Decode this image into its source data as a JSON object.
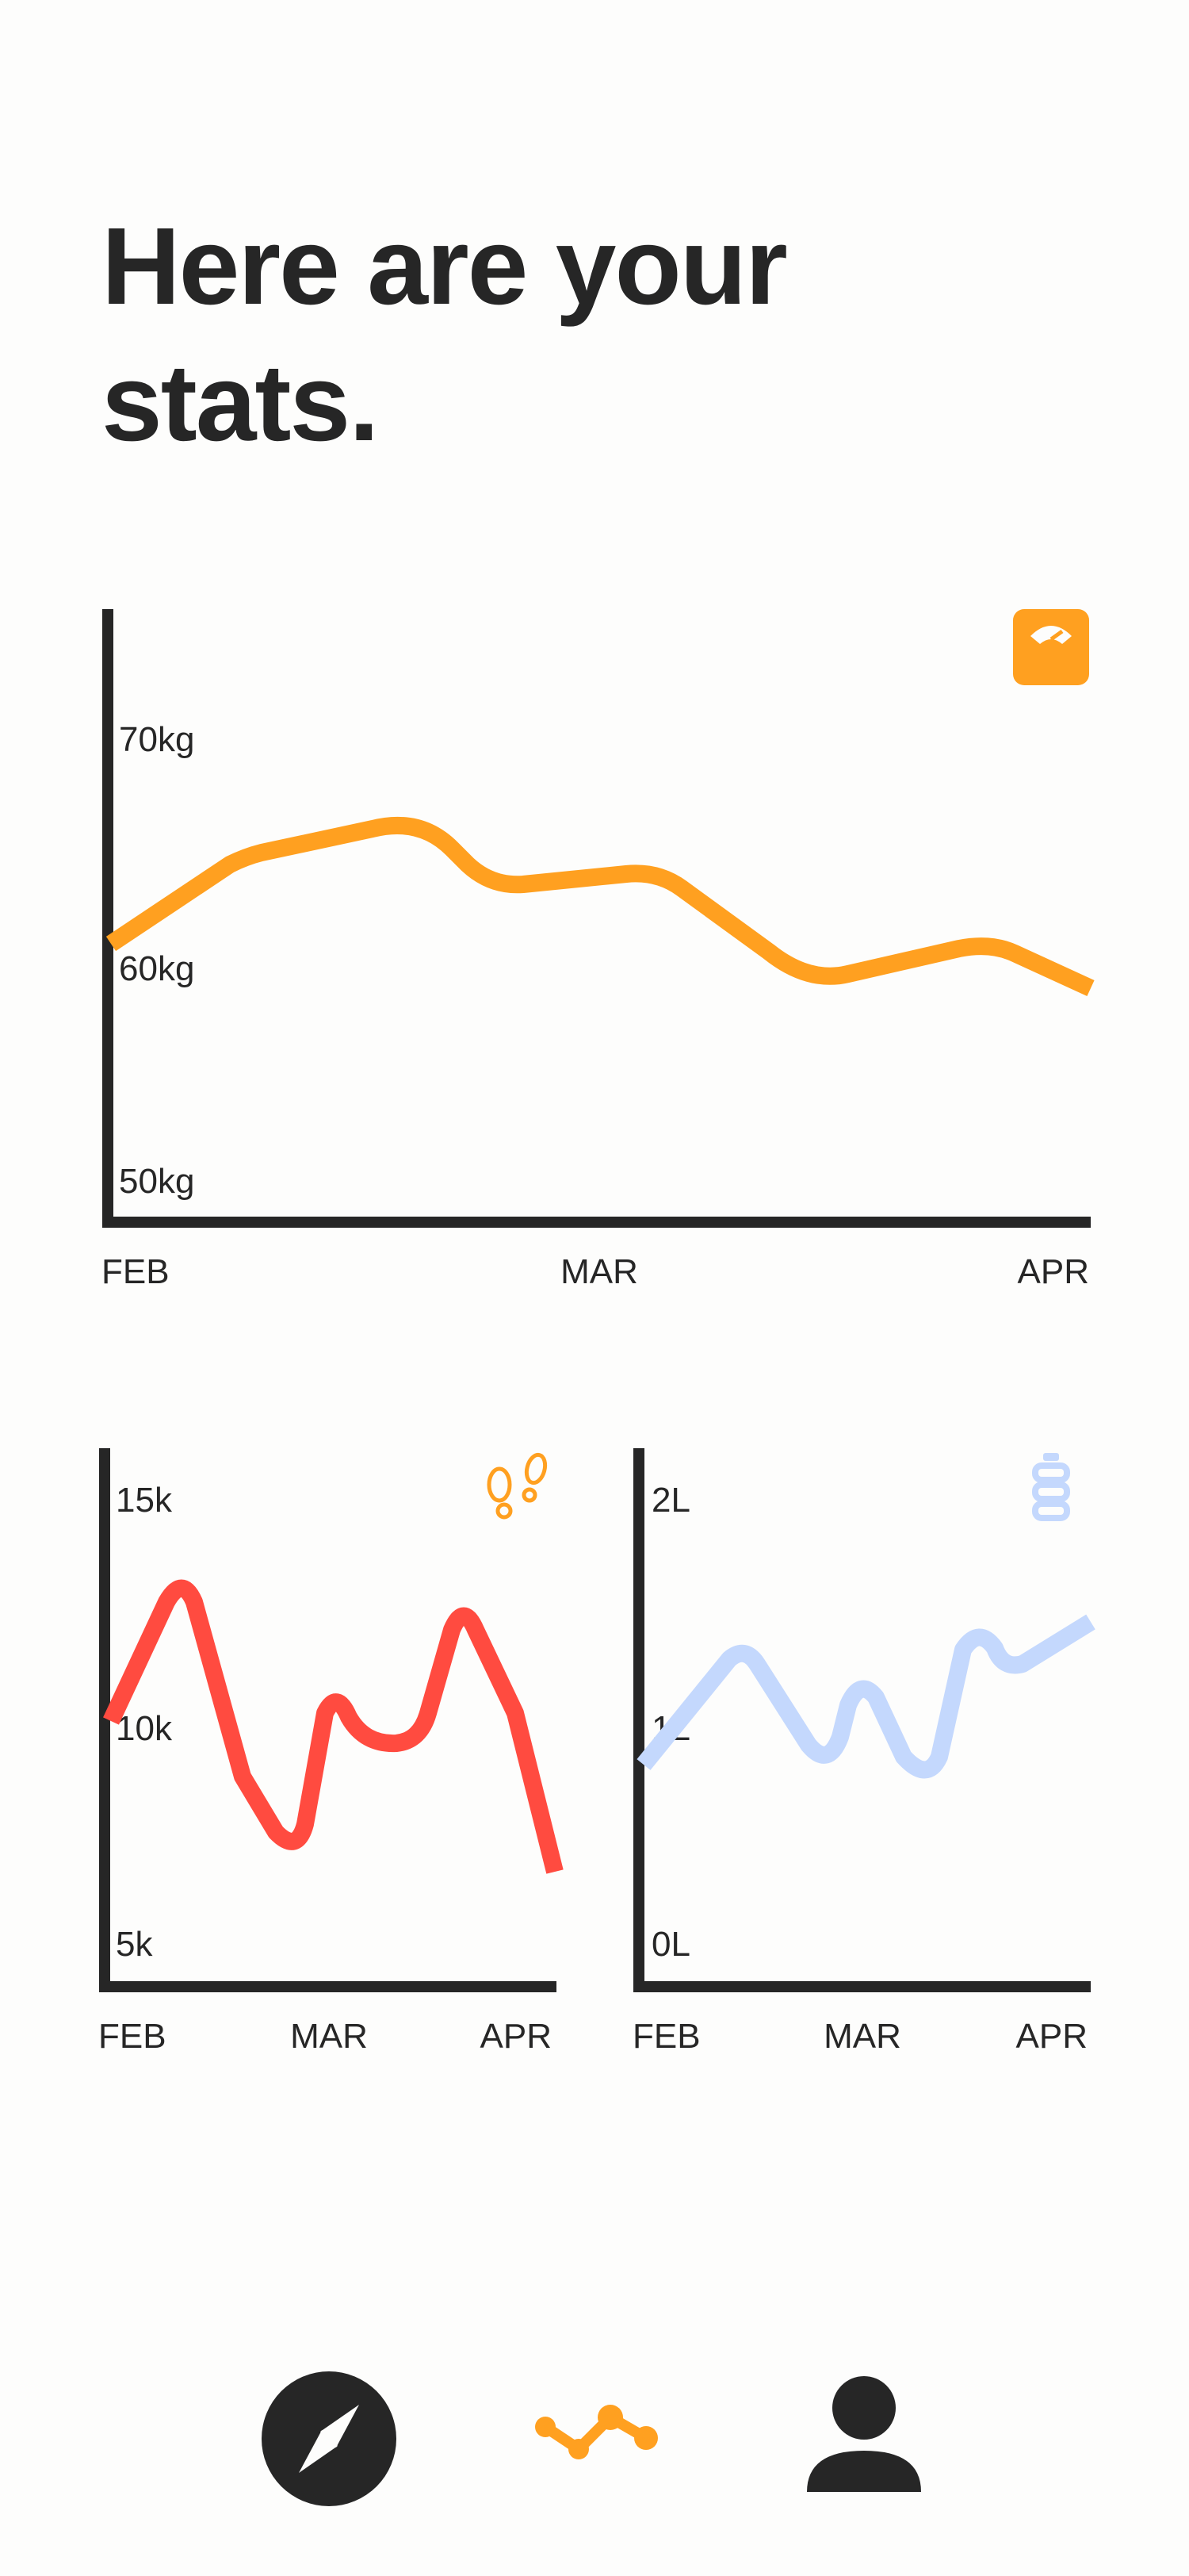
{
  "header": {
    "title_line1": "Here are your",
    "title_line2": "stats."
  },
  "colors": {
    "weight": "#ffa020",
    "steps": "#ff4b40",
    "water": "#c4d8fd",
    "axis": "#262626",
    "background": "#fdfdfc"
  },
  "charts": {
    "weight": {
      "icon": "scale-icon",
      "y_ticks": [
        "70kg",
        "60kg",
        "50kg"
      ],
      "x_ticks": [
        "FEB",
        "MAR",
        "APR"
      ]
    },
    "steps": {
      "icon": "footprints-icon",
      "y_ticks": [
        "15k",
        "10k",
        "5k"
      ],
      "x_ticks": [
        "FEB",
        "MAR",
        "APR"
      ]
    },
    "water": {
      "icon": "water-bottle-icon",
      "y_ticks": [
        "2L",
        "1L",
        "0L"
      ],
      "x_ticks": [
        "FEB",
        "MAR",
        "APR"
      ]
    }
  },
  "chart_data": [
    {
      "type": "line",
      "title": "",
      "xlabel": "",
      "ylabel": "",
      "series": [
        {
          "values": [
            62.5,
            65.5,
            67,
            63.5,
            64,
            59.5,
            61,
            58.5
          ]
        }
      ],
      "ylim": [
        50,
        75
      ],
      "x_range": [
        "FEB",
        "APR"
      ],
      "grid": false
    },
    {
      "type": "line",
      "title": "",
      "xlabel": "",
      "ylabel": "",
      "series": [
        {
          "values": [
            10.2,
            13.2,
            8.9,
            7.3,
            10.7,
            10.2,
            12.7,
            10.6,
            6.9
          ]
        }
      ],
      "ylim": [
        5,
        15
      ],
      "x_range": [
        "FEB",
        "APR"
      ],
      "grid": false
    },
    {
      "type": "line",
      "title": "",
      "xlabel": "",
      "ylabel": "",
      "series": [
        {
          "values": [
            0.92,
            1.35,
            1.0,
            1.2,
            0.85,
            1.4,
            1.3,
            1.55
          ]
        }
      ],
      "ylim": [
        0,
        2
      ],
      "x_range": [
        "FEB",
        "APR"
      ],
      "grid": false
    }
  ],
  "nav": {
    "items": [
      {
        "icon": "compass-icon",
        "label": "Explore"
      },
      {
        "icon": "stats-icon",
        "label": "Stats"
      },
      {
        "icon": "profile-icon",
        "label": "Profile"
      }
    ]
  }
}
